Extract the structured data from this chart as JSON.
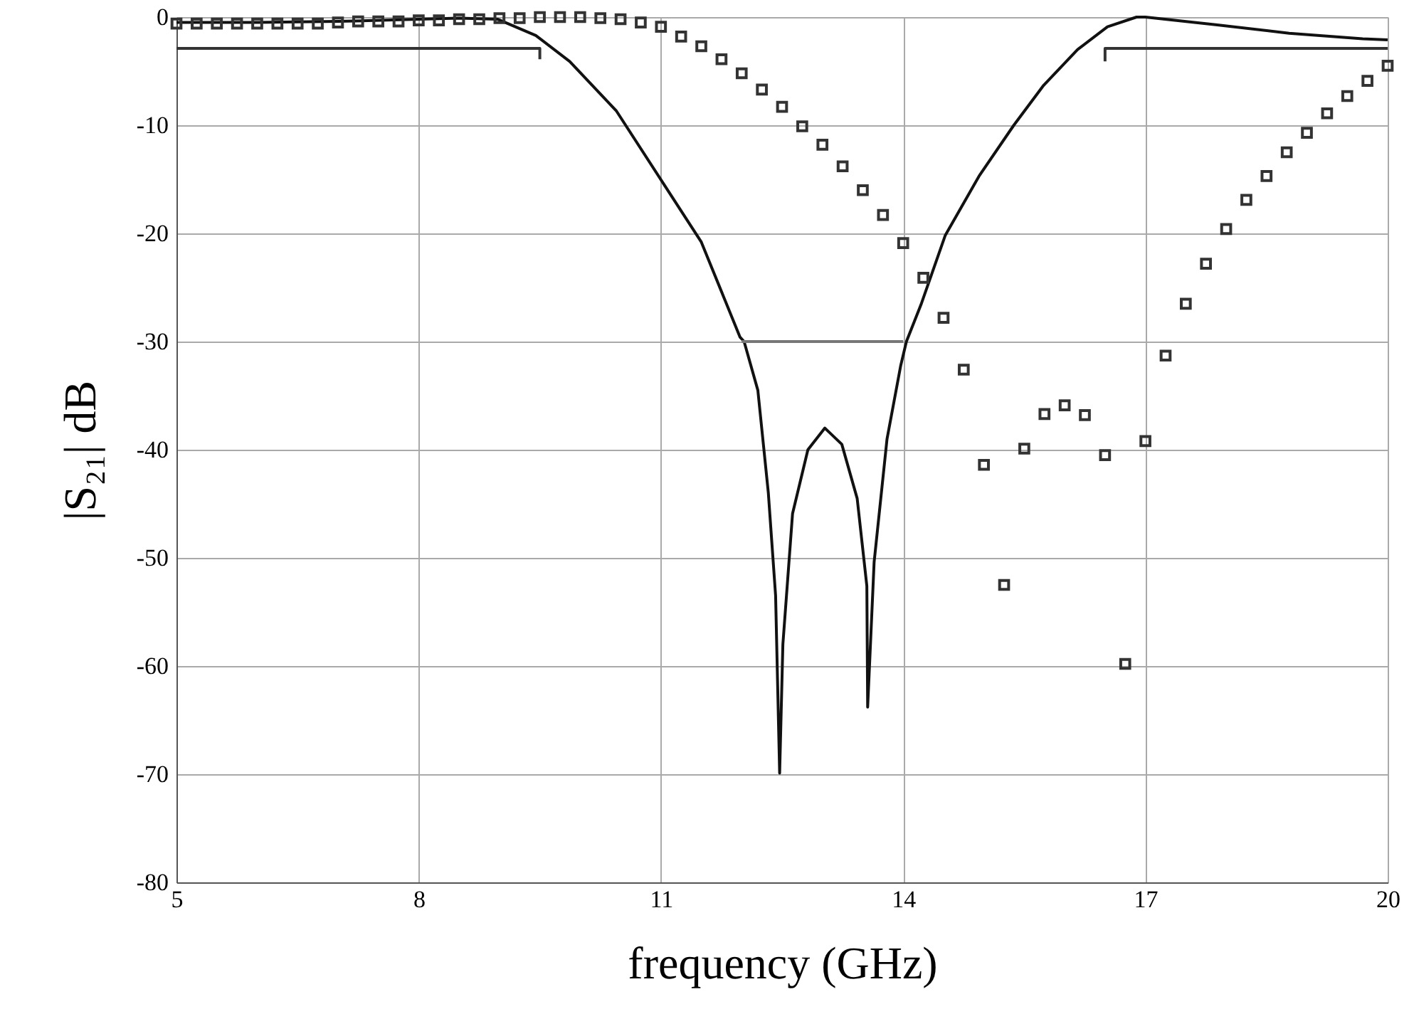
{
  "chart_data": {
    "type": "line",
    "xlabel": "frequency (GHz)",
    "ylabel": "|S₂₁| dB",
    "xlim": [
      5,
      20
    ],
    "ylim": [
      -80,
      0
    ],
    "xticks": [
      5,
      8,
      11,
      14,
      17,
      20
    ],
    "yticks": [
      0,
      -10,
      -20,
      -30,
      -40,
      -50,
      -60,
      -70,
      -80
    ],
    "grid": true,
    "series": [
      {
        "color": "#111111",
        "x": [
          5,
          6,
          7,
          8,
          8.5,
          8.98,
          9.45,
          9.87,
          10.45,
          11.04,
          11.5,
          11.98,
          12.03,
          12.2,
          12.33,
          12.42,
          12.47,
          12.51,
          12.63,
          12.82,
          13.03,
          13.24,
          13.43,
          13.55,
          13.56,
          13.64,
          13.8,
          13.97,
          14.04,
          14.22,
          14.52,
          14.94,
          15.37,
          15.74,
          16.16,
          16.53,
          16.89,
          17.0,
          17.87,
          18.78,
          19.69,
          20
        ],
        "values": [
          -0.5,
          -0.5,
          -0.4,
          -0.2,
          -0.1,
          -0.2,
          -1.7,
          -4.1,
          -8.7,
          -15.5,
          -20.8,
          -29.6,
          -30,
          -34.5,
          -44,
          -53.5,
          -69.9,
          -58,
          -45.9,
          -40,
          -38,
          -39.5,
          -44.5,
          -52.6,
          -63.8,
          -50.4,
          -39,
          -32.2,
          -30,
          -26.6,
          -20.2,
          -14.7,
          -10,
          -6.3,
          -3,
          -0.9,
          0,
          0,
          -0.7,
          -1.5,
          -2,
          -2.1
        ]
      },
      {
        "type": "scatter",
        "marker": "square",
        "color": "#333333",
        "x": [
          5,
          5.25,
          5.5,
          5.75,
          6,
          6.25,
          6.5,
          6.75,
          7,
          7.25,
          7.5,
          7.75,
          8,
          8.25,
          8.5,
          8.75,
          9,
          9.25,
          9.5,
          9.75,
          10,
          10.25,
          10.5,
          10.75,
          11,
          11.25,
          11.5,
          11.75,
          12,
          12.25,
          12.5,
          12.75,
          13,
          13.25,
          13.5,
          13.75,
          14,
          14.25,
          14.5,
          14.75,
          15,
          15.25,
          15.5,
          15.75,
          16,
          16.25,
          16.5,
          16.75,
          17,
          17.25,
          17.5,
          17.75,
          18,
          18.25,
          18.5,
          18.75,
          19,
          19.25,
          19.5,
          19.75,
          20
        ],
        "values": [
          -0.6,
          -0.6,
          -0.6,
          -0.6,
          -0.6,
          -0.6,
          -0.6,
          -0.6,
          -0.5,
          -0.4,
          -0.4,
          -0.4,
          -0.3,
          -0.3,
          -0.2,
          -0.2,
          -0.1,
          -0.1,
          0,
          0,
          0,
          -0.1,
          -0.2,
          -0.5,
          -0.9,
          -1.8,
          -2.7,
          -3.9,
          -5.2,
          -6.7,
          -8.3,
          -10.1,
          -11.8,
          -13.8,
          -16,
          -18.3,
          -20.9,
          -24.1,
          -27.8,
          -32.6,
          -41.4,
          -52.5,
          -39.9,
          -36.7,
          -35.9,
          -36.8,
          -40.5,
          -59.8,
          -39.2,
          -31.3,
          -26.5,
          -22.8,
          -19.6,
          -16.9,
          -14.7,
          -12.5,
          -10.7,
          -8.9,
          -7.3,
          -5.9,
          -4.5
        ]
      },
      {
        "color": "#333333",
        "x": [
          5,
          9.5,
          9.5
        ],
        "values": [
          -2.9,
          -2.9,
          -3.9
        ]
      },
      {
        "color": "#333333",
        "x": [
          16.5,
          16.5,
          20
        ],
        "values": [
          -4.1,
          -2.9,
          -2.9
        ]
      },
      {
        "color": "#777777",
        "x": [
          12,
          14
        ],
        "values": [
          -30,
          -30
        ]
      }
    ]
  }
}
